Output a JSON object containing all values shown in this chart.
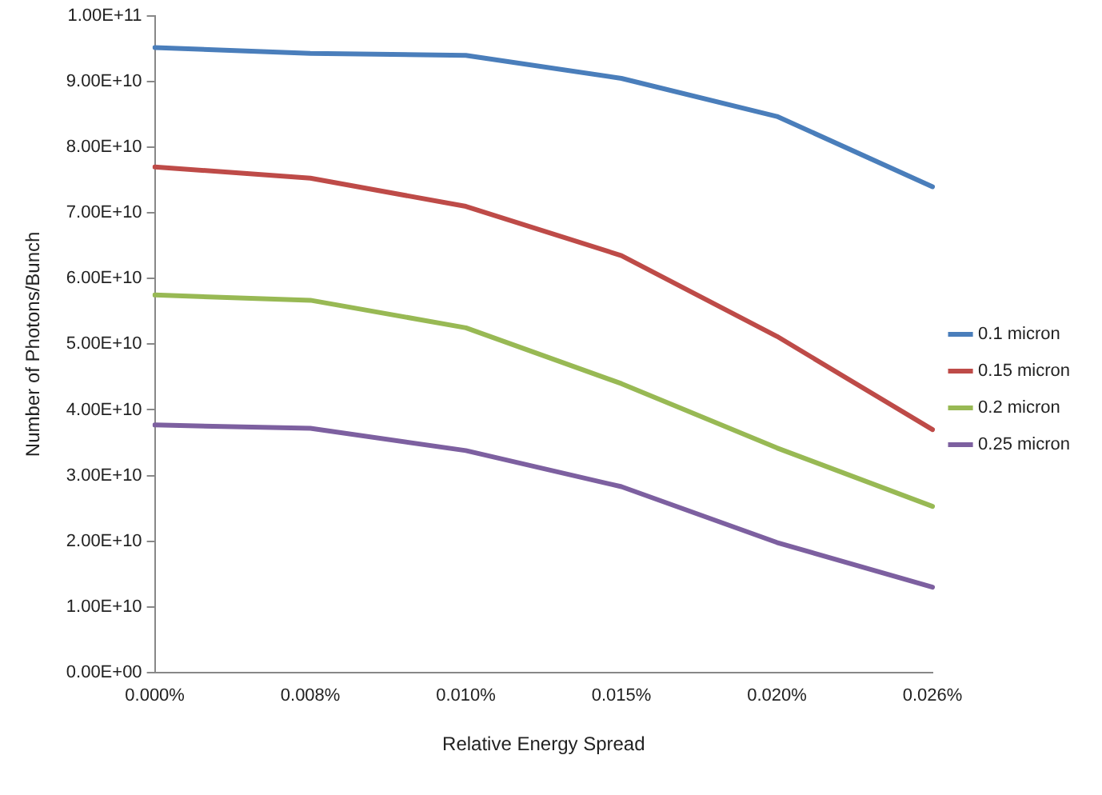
{
  "chart_data": {
    "type": "line",
    "xlabel": "Relative Energy Spread",
    "ylabel": "Number of Photons/Bunch",
    "categories": [
      "0.000%",
      "0.008%",
      "0.010%",
      "0.015%",
      "0.020%",
      "0.026%"
    ],
    "series": [
      {
        "name": "0.1 micron",
        "color": "#4a7ebb",
        "values": [
          95200000000,
          94300000000,
          94000000000,
          90500000000,
          84700000000,
          74000000000
        ]
      },
      {
        "name": "0.15 micron",
        "color": "#be4b48",
        "values": [
          77000000000,
          75300000000,
          71000000000,
          63500000000,
          51200000000,
          37000000000
        ]
      },
      {
        "name": "0.2 micron",
        "color": "#98b954",
        "values": [
          57500000000,
          56700000000,
          52500000000,
          44000000000,
          34200000000,
          25300000000
        ]
      },
      {
        "name": "0.25 micron",
        "color": "#7d60a0",
        "values": [
          37700000000,
          37200000000,
          33800000000,
          28300000000,
          19800000000,
          13000000000
        ]
      }
    ],
    "ylim": [
      0,
      100000000000
    ],
    "yticks": [
      {
        "value": 0,
        "label": "0.00E+00"
      },
      {
        "value": 10000000000,
        "label": "1.00E+10"
      },
      {
        "value": 20000000000,
        "label": "2.00E+10"
      },
      {
        "value": 30000000000,
        "label": "3.00E+10"
      },
      {
        "value": 40000000000,
        "label": "4.00E+10"
      },
      {
        "value": 50000000000,
        "label": "5.00E+10"
      },
      {
        "value": 60000000000,
        "label": "6.00E+10"
      },
      {
        "value": 70000000000,
        "label": "7.00E+10"
      },
      {
        "value": 80000000000,
        "label": "8.00E+10"
      },
      {
        "value": 90000000000,
        "label": "9.00E+10"
      },
      {
        "value": 100000000000,
        "label": "1.00E+11"
      }
    ],
    "grid": false,
    "legend": "right",
    "marker": "none",
    "line_style": "solid"
  }
}
